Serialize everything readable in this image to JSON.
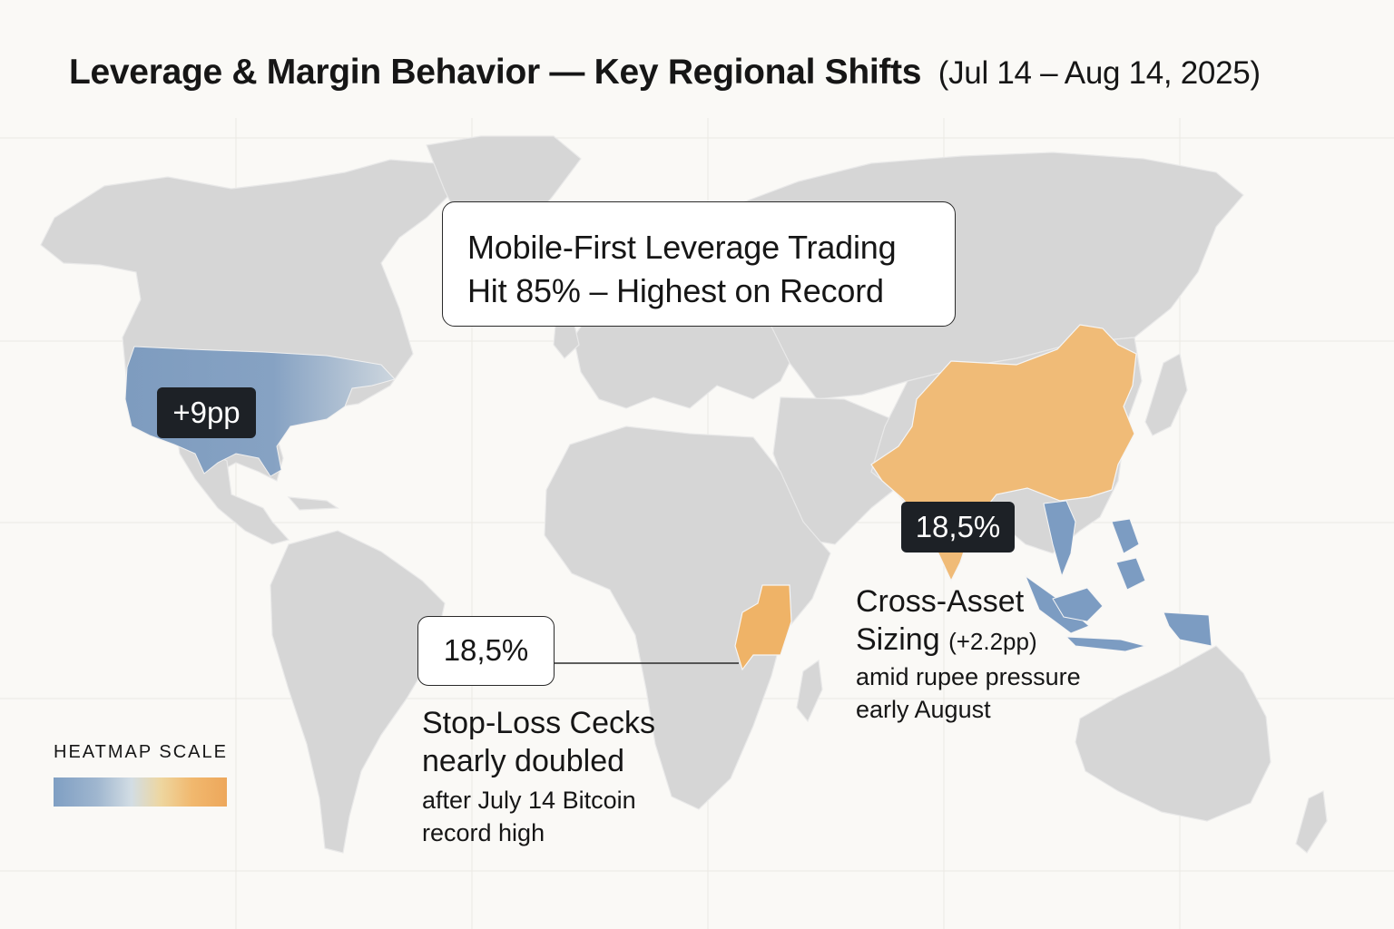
{
  "title": {
    "main": "Leverage & Margin Behavior — Key Regional Shifts",
    "date_range": "(Jul 14 – Aug 14, 2025)"
  },
  "headline": {
    "line1": "Mobile-First Leverage Trading",
    "line2": "Hit 85% – Highest on Record"
  },
  "regions": {
    "north_america": {
      "badge": "+9pp",
      "color": "#7e9cbf"
    },
    "east_africa": {
      "badge": "18,5%",
      "label_line1": "Stop-Loss Cecks",
      "label_line2": "nearly doubled",
      "note_line1": "after July 14 Bitcoin",
      "note_line2": "record high",
      "color": "#efb367"
    },
    "asia": {
      "badge": "18,5%",
      "label_line1": "Cross-Asset",
      "label_line2": "Sizing",
      "label_delta": "(+2.2pp)",
      "note_line1": "amid rupee pressure",
      "note_line2": "early August",
      "highlight_color": "#f0bb77",
      "secondary_color": "#7c9cc2"
    }
  },
  "legend": {
    "title": "HEATMAP SCALE",
    "low_color": "#7f9fc3",
    "high_color": "#eda75b"
  },
  "colors": {
    "land": "#d6d6d6",
    "background": "#faf9f6"
  }
}
